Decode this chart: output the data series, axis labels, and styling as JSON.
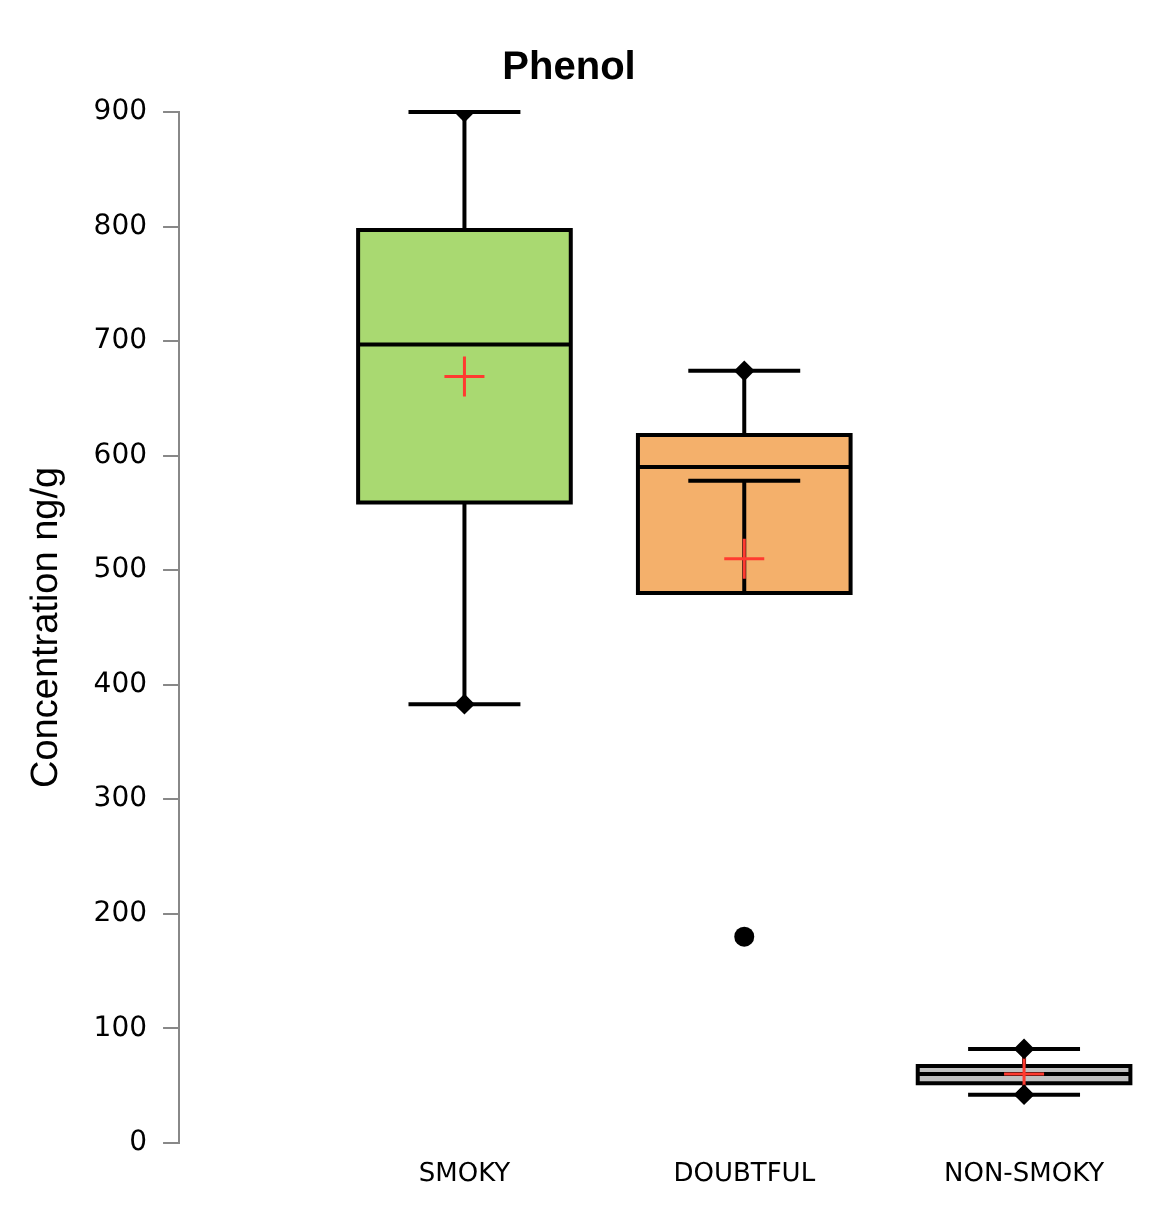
{
  "chart_data": {
    "type": "box",
    "title": "Phenol",
    "ylabel": "Concentration ng/g",
    "categories": [
      "SMOKY",
      "DOUBTFUL",
      "NON-SMOKY"
    ],
    "colors": [
      "#a9d971",
      "#f4b06b",
      "#c0c0c0"
    ],
    "boxes": [
      {
        "low": 383,
        "q1": 559,
        "median": 697,
        "q3": 797,
        "high": 900,
        "mean": 669
      },
      {
        "low": 578,
        "q1": 480,
        "median": 590,
        "q3": 618,
        "high": 674,
        "mean": 510,
        "outliers": [
          180
        ]
      },
      {
        "low": 42,
        "q1": 52,
        "median": 60,
        "q3": 67,
        "high": 82,
        "mean": 60
      }
    ],
    "ylim": [
      0,
      900
    ],
    "yticks": [
      0,
      100,
      200,
      300,
      400,
      500,
      600,
      700,
      800,
      900
    ],
    "series": [
      {
        "type": "scatter",
        "color": "#000000",
        "x": [
          "SMOKY",
          "SMOKY",
          "DOUBTFUL",
          "DOUBTFUL",
          "NON-SMOKY",
          "NON-SMOKY"
        ],
        "values": [
          900,
          383,
          674,
          null,
          82,
          42
        ]
      }
    ],
    "grid": false,
    "legend": false,
    "marker": "diamond"
  }
}
